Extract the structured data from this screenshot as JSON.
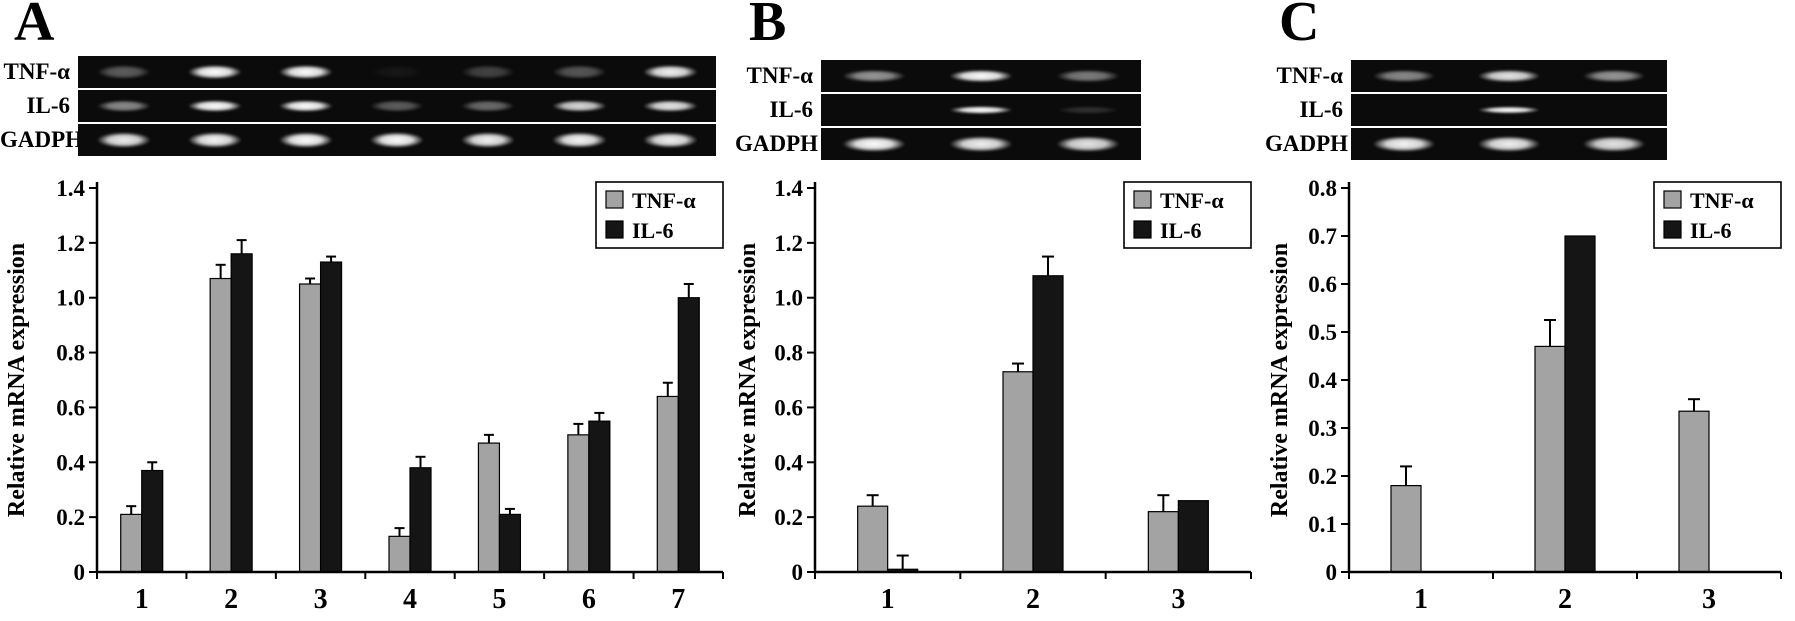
{
  "figure": {
    "panels": [
      {
        "label": "A",
        "gel": {
          "rows": [
            {
              "label": "TNF-α",
              "band_h": 18,
              "bands": [
                0.32,
                1.0,
                1.0,
                0.05,
                0.22,
                0.3,
                0.9
              ]
            },
            {
              "label": "IL-6",
              "band_h": 15,
              "bands": [
                0.5,
                0.95,
                0.95,
                0.33,
                0.38,
                0.8,
                0.85
              ]
            },
            {
              "label": "GADPH",
              "band_h": 20,
              "bands": [
                0.88,
                0.92,
                0.95,
                0.95,
                0.9,
                0.92,
                0.9
              ]
            }
          ]
        }
      },
      {
        "label": "B",
        "gel": {
          "rows": [
            {
              "label": "TNF-α",
              "band_h": 16,
              "bands": [
                0.55,
                0.95,
                0.45
              ]
            },
            {
              "label": "IL-6",
              "band_h": 10,
              "bands": [
                0,
                0.98,
                0.15
              ]
            },
            {
              "label": "GADPH",
              "band_h": 20,
              "bands": [
                0.95,
                0.9,
                0.85
              ]
            }
          ]
        }
      },
      {
        "label": "C",
        "gel": {
          "rows": [
            {
              "label": "TNF-α",
              "band_h": 16,
              "bands": [
                0.5,
                0.85,
                0.55
              ]
            },
            {
              "label": "IL-6",
              "band_h": 9,
              "bands": [
                0,
                0.95,
                0
              ]
            },
            {
              "label": "GADPH",
              "band_h": 20,
              "bands": [
                0.92,
                0.9,
                0.85
              ]
            }
          ]
        }
      }
    ]
  },
  "chart_data": [
    {
      "type": "bar",
      "title": "",
      "categories": [
        "1",
        "2",
        "3",
        "4",
        "5",
        "6",
        "7"
      ],
      "xlabel": "",
      "ylabel": "Relative mRNA expression",
      "ylim": [
        0,
        1.4
      ],
      "ytick_step": 0.2,
      "grid": false,
      "legend_position": "top-right",
      "series": [
        {
          "name": "TNF-α",
          "color": "#a3a3a3",
          "values": [
            0.21,
            1.07,
            1.05,
            0.13,
            0.47,
            0.5,
            0.64
          ],
          "errors": [
            0.03,
            0.05,
            0.02,
            0.03,
            0.03,
            0.04,
            0.05
          ]
        },
        {
          "name": "IL-6",
          "color": "#151515",
          "values": [
            0.37,
            1.16,
            1.13,
            0.38,
            0.21,
            0.55,
            1.0
          ],
          "errors": [
            0.03,
            0.05,
            0.02,
            0.04,
            0.02,
            0.03,
            0.05
          ]
        }
      ]
    },
    {
      "type": "bar",
      "title": "",
      "categories": [
        "1",
        "2",
        "3"
      ],
      "xlabel": "",
      "ylabel": "Relative mRNA expression",
      "ylim": [
        0,
        1.4
      ],
      "ytick_step": 0.2,
      "grid": false,
      "legend_position": "top-right",
      "series": [
        {
          "name": "TNF-α",
          "color": "#a3a3a3",
          "values": [
            0.24,
            0.73,
            0.22
          ],
          "errors": [
            0.04,
            0.03,
            0.06
          ]
        },
        {
          "name": "IL-6",
          "color": "#151515",
          "values": [
            0.01,
            1.08,
            0.26
          ],
          "errors": [
            0.05,
            0.07,
            0
          ]
        }
      ]
    },
    {
      "type": "bar",
      "title": "",
      "categories": [
        "1",
        "2",
        "3"
      ],
      "xlabel": "",
      "ylabel": "Relative mRNA expression",
      "ylim": [
        0,
        0.8
      ],
      "ytick_step": 0.1,
      "grid": false,
      "legend_position": "top-right",
      "series": [
        {
          "name": "TNF-α",
          "color": "#a3a3a3",
          "values": [
            0.18,
            0.47,
            0.335
          ],
          "errors": [
            0.04,
            0.055,
            0.025
          ]
        },
        {
          "name": "IL-6",
          "color": "#151515",
          "values": [
            0,
            0.7,
            0
          ],
          "errors": [
            0,
            0,
            0
          ]
        }
      ]
    }
  ]
}
